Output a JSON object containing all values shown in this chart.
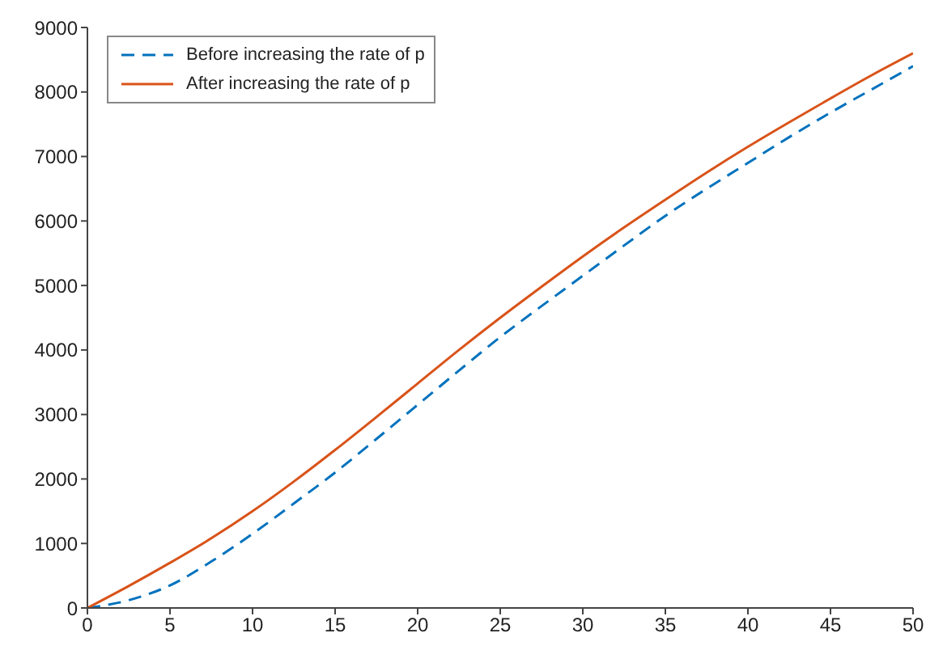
{
  "chart_data": {
    "type": "line",
    "x": [
      0,
      2.5,
      5,
      7.5,
      10,
      12.5,
      15,
      17.5,
      20,
      22.5,
      25,
      27.5,
      30,
      32.5,
      35,
      37.5,
      40,
      42.5,
      45,
      47.5,
      50
    ],
    "series": [
      {
        "name": "Before increasing the rate of p",
        "color": "#0072bd",
        "line_style": "dashed",
        "values": [
          0,
          120,
          350,
          720,
          1150,
          1620,
          2100,
          2620,
          3150,
          3680,
          4200,
          4680,
          5150,
          5620,
          6080,
          6500,
          6900,
          7300,
          7680,
          8040,
          8400
        ]
      },
      {
        "name": "After increasing the rate of p",
        "color": "#d95319",
        "line_style": "solid",
        "values": [
          0,
          340,
          700,
          1080,
          1500,
          1960,
          2450,
          2960,
          3480,
          4000,
          4500,
          4980,
          5450,
          5900,
          6330,
          6750,
          7150,
          7530,
          7900,
          8260,
          8600
        ]
      }
    ],
    "xlim": [
      0,
      50
    ],
    "xticks": [
      0,
      5,
      10,
      15,
      20,
      25,
      30,
      35,
      40,
      45,
      50
    ],
    "ylim": [
      0,
      9000
    ],
    "yticks": [
      0,
      1000,
      2000,
      3000,
      4000,
      5000,
      6000,
      7000,
      8000,
      9000
    ],
    "grid": false,
    "legend": "top left",
    "marker": "none"
  }
}
